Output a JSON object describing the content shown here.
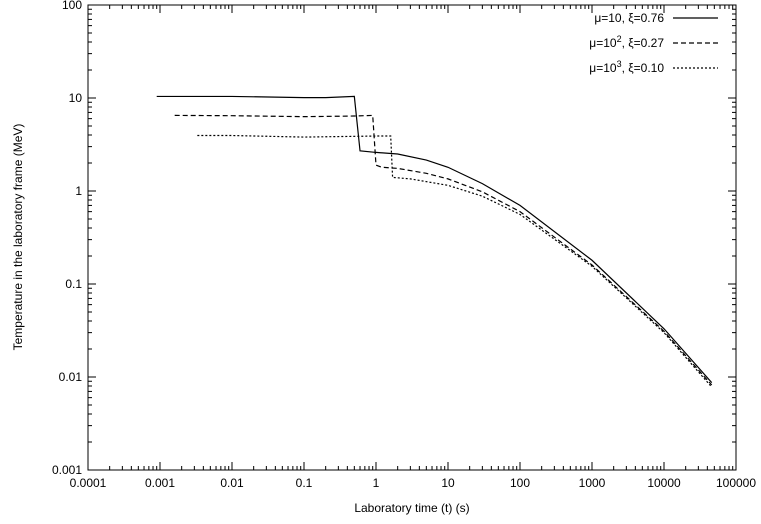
{
  "chart_data": {
    "type": "line",
    "xlabel": "Laboratory time (t) (s)",
    "ylabel": "Temperature in the laboratory frame (MeV)",
    "xscale": "log",
    "yscale": "log",
    "xlim": [
      0.0001,
      100000
    ],
    "ylim": [
      0.001,
      100
    ],
    "x_ticks": [
      "0.0001",
      "0.001",
      "0.01",
      "0.1",
      "1",
      "10",
      "100",
      "1000",
      "10000",
      "100000"
    ],
    "y_ticks": [
      "0.001",
      "0.01",
      "0.1",
      "1",
      "10",
      "100"
    ],
    "grid": false,
    "legend_position": "top-right",
    "series": [
      {
        "name": "μ=10, ξ=0.76",
        "legend_parts": [
          "μ=10, ξ=0.76"
        ],
        "dash": "solid",
        "color": "#000000",
        "points": [
          [
            0.0009,
            10.4
          ],
          [
            0.01,
            10.4
          ],
          [
            0.1,
            10.1
          ],
          [
            0.2,
            10.1
          ],
          [
            0.5,
            10.4
          ],
          [
            0.6,
            2.7
          ],
          [
            1.0,
            2.6
          ],
          [
            2.0,
            2.5
          ],
          [
            5.0,
            2.15
          ],
          [
            10.0,
            1.8
          ],
          [
            30.0,
            1.2
          ],
          [
            100.0,
            0.7
          ],
          [
            1000.0,
            0.18
          ],
          [
            10000.0,
            0.033
          ],
          [
            46000.0,
            0.0087
          ]
        ]
      },
      {
        "name": "μ=10^2, ξ=0.27",
        "legend_parts": [
          "μ=10",
          "2",
          ", ξ=0.27"
        ],
        "dash": "dashed",
        "color": "#000000",
        "points": [
          [
            0.0016,
            6.5
          ],
          [
            0.01,
            6.45
          ],
          [
            0.1,
            6.3
          ],
          [
            0.5,
            6.4
          ],
          [
            0.9,
            6.5
          ],
          [
            1.0,
            1.9
          ],
          [
            1.2,
            1.8
          ],
          [
            2.0,
            1.75
          ],
          [
            5.0,
            1.55
          ],
          [
            10.0,
            1.35
          ],
          [
            30.0,
            0.98
          ],
          [
            100.0,
            0.6
          ],
          [
            1000.0,
            0.16
          ],
          [
            10000.0,
            0.031
          ],
          [
            46000.0,
            0.0082
          ]
        ]
      },
      {
        "name": "μ=10^3, ξ=0.10",
        "legend_parts": [
          "μ=10",
          "3",
          ", ξ=0.10"
        ],
        "dash": "dotted",
        "color": "#000000",
        "points": [
          [
            0.0033,
            3.95
          ],
          [
            0.01,
            3.95
          ],
          [
            0.1,
            3.8
          ],
          [
            1.0,
            3.9
          ],
          [
            1.6,
            3.9
          ],
          [
            1.7,
            1.4
          ],
          [
            3.0,
            1.35
          ],
          [
            10.0,
            1.15
          ],
          [
            30.0,
            0.88
          ],
          [
            100.0,
            0.56
          ],
          [
            1000.0,
            0.155
          ],
          [
            10000.0,
            0.03
          ],
          [
            46000.0,
            0.0078
          ]
        ]
      }
    ]
  }
}
